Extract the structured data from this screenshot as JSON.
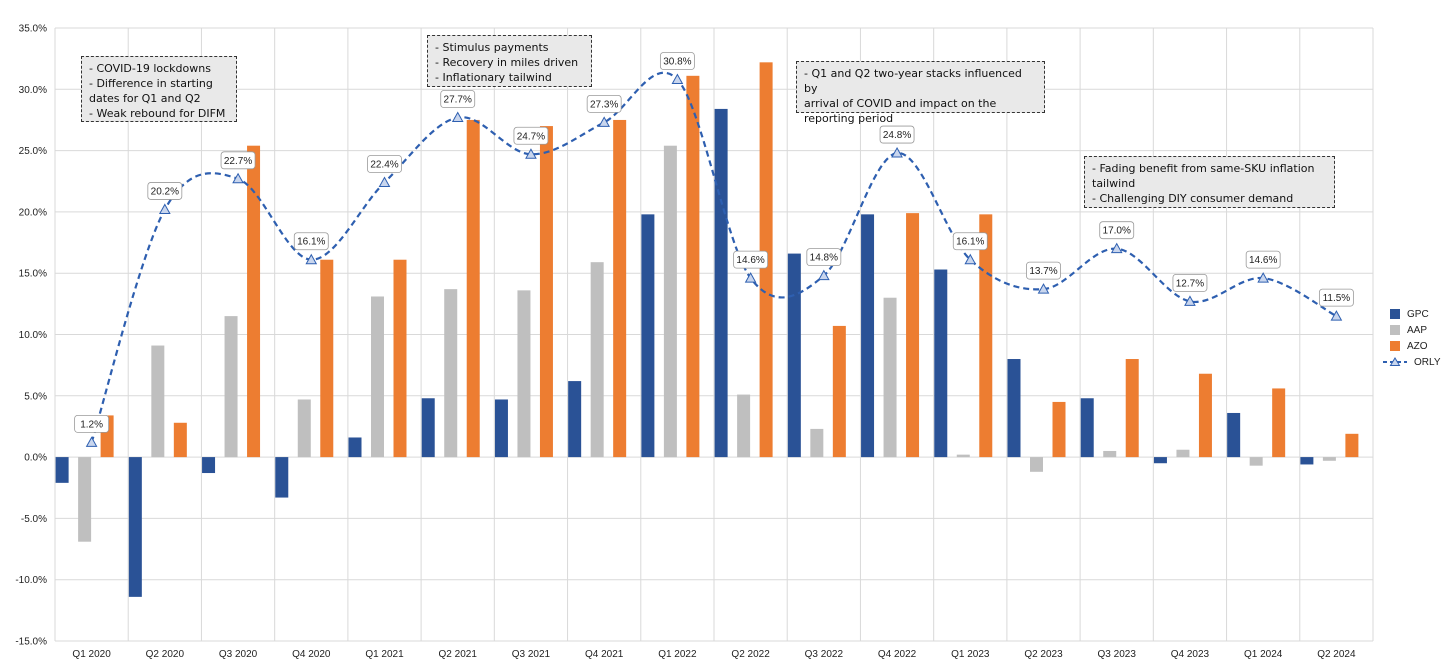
{
  "chart_data": {
    "type": "bar",
    "categories": [
      "Q1 2020",
      "Q2 2020",
      "Q3 2020",
      "Q4 2020",
      "Q1 2021",
      "Q2 2021",
      "Q3 2021",
      "Q4 2021",
      "Q1 2022",
      "Q2 2022",
      "Q3 2022",
      "Q4 2022",
      "Q1 2023",
      "Q2 2023",
      "Q3 2023",
      "Q4 2023",
      "Q1 2024",
      "Q2 2024"
    ],
    "ylim": [
      -15,
      35
    ],
    "yticks": [
      -15,
      -10,
      -5,
      0,
      5,
      10,
      15,
      20,
      25,
      30,
      35
    ],
    "ytick_labels": [
      "-15.0%",
      "-10.0%",
      "-5.0%",
      "0.0%",
      "5.0%",
      "10.0%",
      "15.0%",
      "20.0%",
      "25.0%",
      "30.0%",
      "35.0%"
    ],
    "grid": true,
    "legend_position": "right",
    "series": [
      {
        "name": "GPC",
        "kind": "bar",
        "color": "#2a5296",
        "values": [
          -2.1,
          -11.4,
          -1.3,
          -3.3,
          1.6,
          4.8,
          4.7,
          6.2,
          19.8,
          28.4,
          16.6,
          19.8,
          15.3,
          8.0,
          4.8,
          -0.5,
          3.6,
          -0.6
        ]
      },
      {
        "name": "AAP",
        "kind": "bar",
        "color": "#bfbfbf",
        "values": [
          -6.9,
          9.1,
          11.5,
          4.7,
          13.1,
          13.7,
          13.6,
          15.9,
          25.4,
          5.1,
          2.3,
          13.0,
          0.2,
          -1.2,
          0.5,
          0.6,
          -0.7,
          -0.3
        ]
      },
      {
        "name": "AZO",
        "kind": "bar",
        "color": "#ed7d31",
        "values": [
          3.4,
          2.8,
          25.4,
          16.1,
          16.1,
          27.5,
          27.0,
          27.5,
          31.1,
          32.2,
          10.7,
          19.9,
          19.8,
          4.5,
          8.0,
          6.8,
          5.6,
          1.9
        ]
      },
      {
        "name": "ORLY",
        "kind": "line",
        "color": "#2e5fb0",
        "values": [
          1.2,
          20.2,
          22.7,
          16.1,
          22.4,
          27.7,
          24.7,
          27.3,
          30.8,
          14.6,
          14.8,
          24.8,
          16.1,
          13.7,
          17.0,
          12.7,
          14.6,
          11.5
        ],
        "labels": [
          "1.2%",
          "20.2%",
          "22.7%",
          "16.1%",
          "22.4%",
          "27.7%",
          "24.7%",
          "27.3%",
          "30.8%",
          "14.6%",
          "14.8%",
          "24.8%",
          "16.1%",
          "13.7%",
          "17.0%",
          "12.7%",
          "14.6%",
          "11.5%"
        ]
      }
    ]
  },
  "annotations": [
    {
      "lines": [
        "- COVID-19 lockdowns",
        "- Difference in starting",
        "dates for Q1 and Q2",
        "- Weak rebound for DIFM"
      ]
    },
    {
      "lines": [
        "- Stimulus payments",
        "- Recovery in miles driven",
        "- Inflationary tailwind"
      ]
    },
    {
      "lines": [
        "- Q1 and Q2 two-year stacks influenced by",
        "arrival of COVID and impact on the",
        "reporting period"
      ]
    },
    {
      "lines": [
        "- Fading benefit from same-SKU inflation",
        "tailwind",
        "- Challenging DIY consumer demand"
      ]
    }
  ],
  "legend": {
    "items": [
      {
        "label": "GPC",
        "color": "#2a5296",
        "kind": "bar"
      },
      {
        "label": "AAP",
        "color": "#bfbfbf",
        "kind": "bar"
      },
      {
        "label": "AZO",
        "color": "#ed7d31",
        "kind": "bar"
      },
      {
        "label": "ORLY",
        "color": "#2e5fb0",
        "kind": "line"
      }
    ]
  }
}
